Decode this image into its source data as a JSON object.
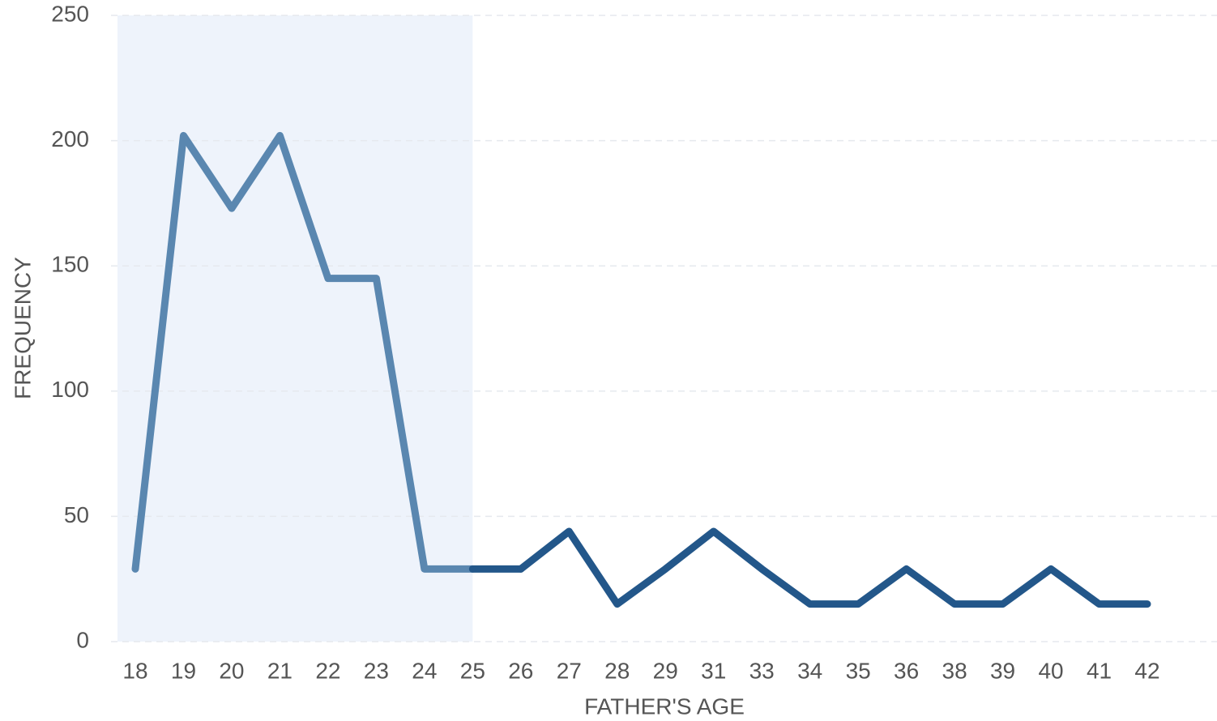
{
  "chart_data": {
    "type": "line",
    "x_label": "FATHER'S AGE",
    "y_label": "FREQUENCY",
    "categories": [
      "18",
      "19",
      "20",
      "21",
      "22",
      "23",
      "24",
      "25",
      "26",
      "27",
      "28",
      "29",
      "31",
      "33",
      "34",
      "35",
      "36",
      "38",
      "39",
      "40",
      "41",
      "42"
    ],
    "series": [
      {
        "name": "Frequency",
        "color": "#23578a",
        "values": [
          29,
          202,
          173,
          202,
          145,
          145,
          29,
          29,
          29,
          44,
          15,
          29,
          44,
          29,
          15,
          15,
          29,
          15,
          15,
          29,
          15,
          15
        ]
      }
    ],
    "highlight": {
      "from": "18",
      "to": "25",
      "color": "#eef3fb",
      "line_color": "#5a87b0"
    },
    "ylim": [
      0,
      250
    ],
    "yticks": [
      0,
      50,
      100,
      150,
      200,
      250
    ],
    "grid": true
  }
}
